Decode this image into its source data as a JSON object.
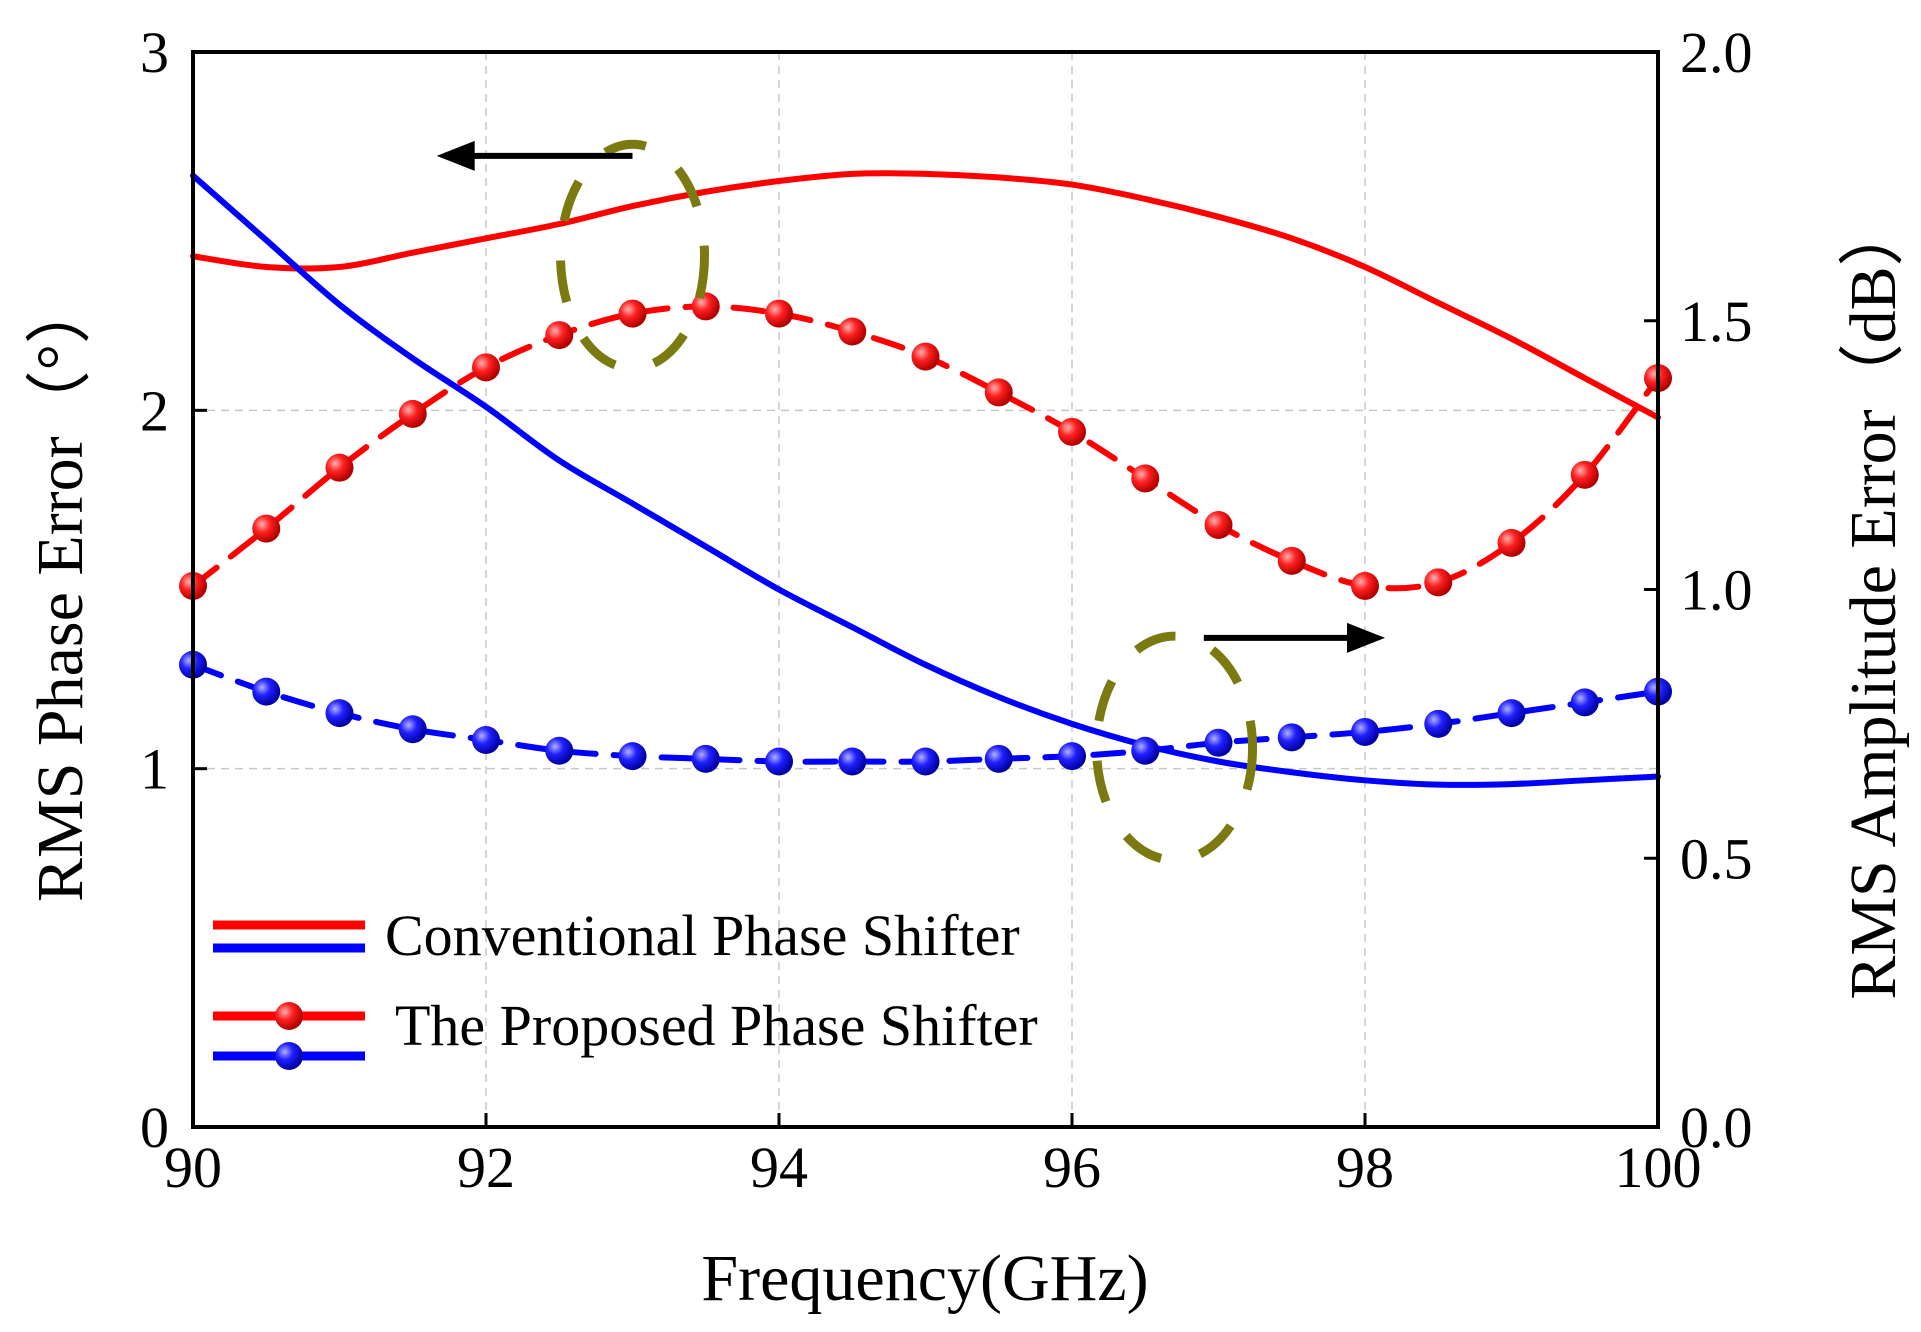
{
  "chart_data": {
    "type": "line",
    "title": "",
    "xlabel": "Frequency(GHz)",
    "ylabel_left": "RMS Phase Error（°）",
    "ylabel_right": "RMS Amplitude Error（dB）",
    "xlim": [
      90,
      100
    ],
    "ylim_left": [
      0,
      3
    ],
    "ylim_right": [
      0,
      2
    ],
    "x_ticks": [
      "90",
      "92",
      "94",
      "96",
      "98",
      "100"
    ],
    "y_ticks_left": [
      "0",
      "1",
      "2",
      "3"
    ],
    "y_ticks_right": [
      "0.0",
      "0.5",
      "1.0",
      "1.5",
      "2.0"
    ],
    "grid": true,
    "legend": {
      "position": "bottom-left",
      "entries": [
        "Conventional Phase Shifter",
        "The Proposed Phase Shifter"
      ]
    },
    "colors": {
      "red": "#ff0000",
      "blue": "#0000ff",
      "marker_circle": "#7a7a10"
    },
    "series": [
      {
        "name": "Conventional Phase Shifter (phase)",
        "axis": "left",
        "color": "#ff0000",
        "style": "solid",
        "x": [
          90,
          90.5,
          91,
          91.5,
          92,
          92.5,
          93,
          93.5,
          94,
          94.5,
          95,
          95.5,
          96,
          96.5,
          97,
          97.5,
          98,
          98.5,
          99,
          99.5,
          100
        ],
        "values": [
          2.43,
          2.4,
          2.4,
          2.44,
          2.48,
          2.52,
          2.57,
          2.61,
          2.64,
          2.66,
          2.66,
          2.65,
          2.63,
          2.59,
          2.54,
          2.48,
          2.4,
          2.3,
          2.2,
          2.09,
          1.98
        ]
      },
      {
        "name": "Conventional Phase Shifter (amplitude)",
        "axis": "right",
        "color": "#0000ff",
        "style": "solid",
        "x": [
          90,
          90.5,
          91,
          91.5,
          92,
          92.5,
          93,
          93.5,
          94,
          94.5,
          95,
          95.5,
          96,
          96.5,
          97,
          97.5,
          98,
          98.5,
          99,
          99.5,
          100
        ],
        "values": [
          1.77,
          1.65,
          1.53,
          1.43,
          1.34,
          1.24,
          1.16,
          1.08,
          1.0,
          0.93,
          0.86,
          0.8,
          0.75,
          0.71,
          0.68,
          0.66,
          0.645,
          0.637,
          0.638,
          0.645,
          0.652
        ]
      },
      {
        "name": "The Proposed Phase Shifter (phase)",
        "axis": "left",
        "color": "#ff0000",
        "style": "dashed-marker",
        "x": [
          90,
          90.5,
          91,
          91.5,
          92,
          92.5,
          93,
          93.5,
          94,
          94.5,
          95,
          95.5,
          96,
          96.5,
          97,
          97.5,
          98,
          98.5,
          99,
          99.5,
          100
        ],
        "values": [
          1.51,
          1.67,
          1.84,
          1.99,
          2.12,
          2.21,
          2.27,
          2.29,
          2.27,
          2.22,
          2.15,
          2.05,
          1.94,
          1.81,
          1.68,
          1.58,
          1.51,
          1.52,
          1.63,
          1.82,
          2.09
        ]
      },
      {
        "name": "The Proposed Phase Shifter (amplitude)",
        "axis": "right",
        "color": "#0000ff",
        "style": "dashed-marker",
        "x": [
          90,
          90.5,
          91,
          91.5,
          92,
          92.5,
          93,
          93.5,
          94,
          94.5,
          95,
          95.5,
          96,
          96.5,
          97,
          97.5,
          98,
          98.5,
          99,
          99.5,
          100
        ],
        "values": [
          0.86,
          0.81,
          0.77,
          0.74,
          0.72,
          0.7,
          0.69,
          0.685,
          0.68,
          0.68,
          0.68,
          0.685,
          0.69,
          0.7,
          0.715,
          0.725,
          0.735,
          0.75,
          0.77,
          0.79,
          0.81
        ]
      }
    ],
    "annotations": [
      {
        "type": "dashed-ellipse",
        "marks": "phase curves",
        "arrow": "left",
        "arrow_label": "left axis"
      },
      {
        "type": "dashed-ellipse",
        "marks": "amplitude curves",
        "arrow": "right",
        "arrow_label": "right axis"
      }
    ]
  }
}
